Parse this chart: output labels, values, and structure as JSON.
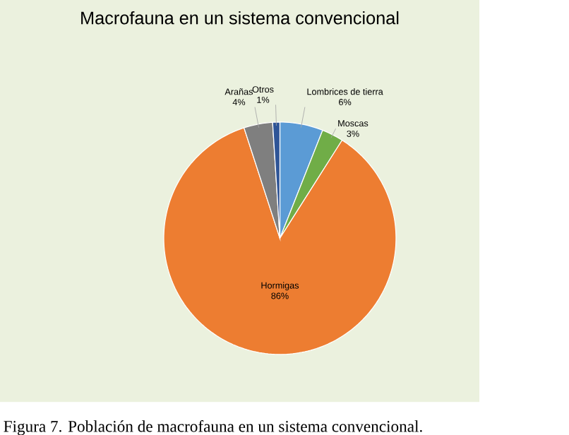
{
  "chart_data": {
    "type": "pie",
    "title": "Macrofauna en un sistema convencional",
    "categories": [
      "Lombrices de tierra",
      "Moscas",
      "Hormigas",
      "Arañas",
      "Otros"
    ],
    "values": [
      6,
      3,
      86,
      4,
      1
    ],
    "value_labels": [
      "6%",
      "3%",
      "86%",
      "4%",
      "1%"
    ],
    "colors": [
      "#5b9bd5",
      "#70ad47",
      "#ed7d31",
      "#7f7f7f",
      "#2f5597"
    ],
    "annotations": [
      "Figura 7. Población de macrofauna en un sistema convencional."
    ]
  }
}
